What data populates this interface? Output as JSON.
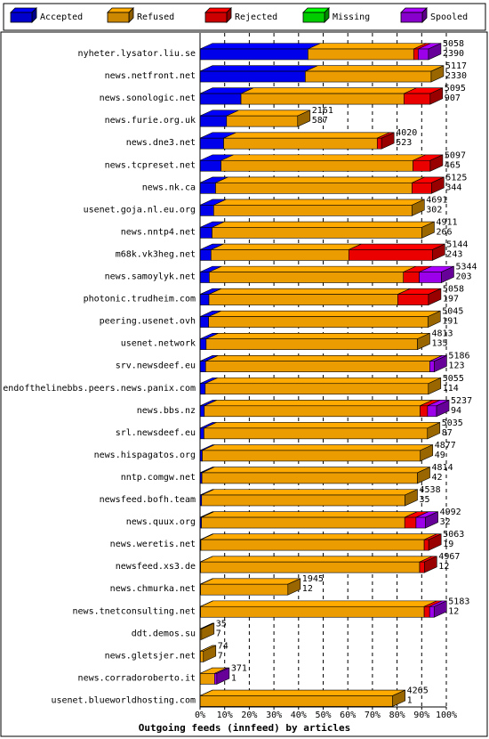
{
  "chart_data": {
    "type": "bar",
    "orientation": "horizontal",
    "stacked": true,
    "title": "Outgoing feeds (innfeed) by articles",
    "legend": {
      "placement": "top",
      "entries": [
        {
          "name": "Accepted",
          "color": "#0000ff"
        },
        {
          "name": "Refused",
          "color": "#ffaa00"
        },
        {
          "name": "Rejected",
          "color": "#ff0000"
        },
        {
          "name": "Missing",
          "color": "#00ff00"
        },
        {
          "name": "Spooled",
          "color": "#aa00ff"
        }
      ]
    },
    "xlim": [
      0,
      100
    ],
    "x_ticks": [
      "0%",
      "10%",
      "20%",
      "30%",
      "40%",
      "50%",
      "60%",
      "70%",
      "80%",
      "90%",
      "100%"
    ],
    "grid": true,
    "rows": [
      {
        "name": "nyheter.lysator.liu.se",
        "total": 5058,
        "accepted": 2390,
        "refused": 2340,
        "rejected": 100,
        "missing": 0,
        "spooled": 228
      },
      {
        "name": "news.netfront.net",
        "total": 5117,
        "accepted": 2330,
        "refused": 2787,
        "rejected": 0,
        "missing": 0,
        "spooled": 0
      },
      {
        "name": "news.sonologic.net",
        "total": 5095,
        "accepted": 907,
        "refused": 3608,
        "rejected": 580,
        "missing": 0,
        "spooled": 0
      },
      {
        "name": "news.furie.org.uk",
        "total": 2161,
        "accepted": 587,
        "refused": 1574,
        "rejected": 0,
        "missing": 0,
        "spooled": 0
      },
      {
        "name": "news.dne3.net",
        "total": 4020,
        "accepted": 523,
        "refused": 3400,
        "rejected": 97,
        "missing": 0,
        "spooled": 0
      },
      {
        "name": "news.tcpreset.net",
        "total": 5097,
        "accepted": 465,
        "refused": 4250,
        "rejected": 382,
        "missing": 0,
        "spooled": 0
      },
      {
        "name": "news.nk.ca",
        "total": 5125,
        "accepted": 344,
        "refused": 4350,
        "rejected": 431,
        "missing": 0,
        "spooled": 0
      },
      {
        "name": "usenet.goja.nl.eu.org",
        "total": 4691,
        "accepted": 302,
        "refused": 4389,
        "rejected": 0,
        "missing": 0,
        "spooled": 0
      },
      {
        "name": "news.nntp4.net",
        "total": 4911,
        "accepted": 266,
        "refused": 4645,
        "rejected": 0,
        "missing": 0,
        "spooled": 0
      },
      {
        "name": "m68k.vk3heg.net",
        "total": 5144,
        "accepted": 243,
        "refused": 3050,
        "rejected": 1851,
        "missing": 0,
        "spooled": 0
      },
      {
        "name": "news.samoylyk.net",
        "total": 5344,
        "accepted": 203,
        "refused": 4300,
        "rejected": 350,
        "missing": 0,
        "spooled": 491
      },
      {
        "name": "photonic.trudheim.com",
        "total": 5058,
        "accepted": 197,
        "refused": 4181,
        "rejected": 680,
        "missing": 0,
        "spooled": 0
      },
      {
        "name": "peering.usenet.ovh",
        "total": 5045,
        "accepted": 191,
        "refused": 4854,
        "rejected": 0,
        "missing": 0,
        "spooled": 0
      },
      {
        "name": "usenet.network",
        "total": 4813,
        "accepted": 135,
        "refused": 4678,
        "rejected": 0,
        "missing": 0,
        "spooled": 0
      },
      {
        "name": "srv.newsdeef.eu",
        "total": 5186,
        "accepted": 123,
        "refused": 4963,
        "rejected": 0,
        "missing": 0,
        "spooled": 100
      },
      {
        "name": "endofthelinebbs.peers.news.panix.com",
        "total": 5055,
        "accepted": 114,
        "refused": 4941,
        "rejected": 0,
        "missing": 0,
        "spooled": 0
      },
      {
        "name": "news.bbs.nz",
        "total": 5237,
        "accepted": 94,
        "refused": 4776,
        "rejected": 167,
        "missing": 0,
        "spooled": 200
      },
      {
        "name": "srl.newsdeef.eu",
        "total": 5035,
        "accepted": 87,
        "refused": 4948,
        "rejected": 0,
        "missing": 0,
        "spooled": 0
      },
      {
        "name": "news.hispagatos.org",
        "total": 4877,
        "accepted": 49,
        "refused": 4828,
        "rejected": 0,
        "missing": 0,
        "spooled": 0
      },
      {
        "name": "nntp.comgw.net",
        "total": 4814,
        "accepted": 42,
        "refused": 4772,
        "rejected": 0,
        "missing": 0,
        "spooled": 0
      },
      {
        "name": "newsfeed.bofh.team",
        "total": 4538,
        "accepted": 35,
        "refused": 4503,
        "rejected": 0,
        "missing": 0,
        "spooled": 0
      },
      {
        "name": "news.quux.org",
        "total": 4992,
        "accepted": 32,
        "refused": 4500,
        "rejected": 250,
        "missing": 0,
        "spooled": 210
      },
      {
        "name": "news.weretis.net",
        "total": 5063,
        "accepted": 19,
        "refused": 4944,
        "rejected": 100,
        "missing": 0,
        "spooled": 0
      },
      {
        "name": "newsfeed.xs3.de",
        "total": 4967,
        "accepted": 12,
        "refused": 4850,
        "rejected": 105,
        "missing": 0,
        "spooled": 0
      },
      {
        "name": "news.chmurka.net",
        "total": 1945,
        "accepted": 12,
        "refused": 1933,
        "rejected": 0,
        "missing": 0,
        "spooled": 0
      },
      {
        "name": "news.tnetconsulting.net",
        "total": 5183,
        "accepted": 12,
        "refused": 4951,
        "rejected": 120,
        "missing": 0,
        "spooled": 100
      },
      {
        "name": "ddt.demos.su",
        "total": 35,
        "accepted": 7,
        "refused": 28,
        "rejected": 0,
        "missing": 0,
        "spooled": 0
      },
      {
        "name": "news.gletsjer.net",
        "total": 74,
        "accepted": 7,
        "refused": 67,
        "rejected": 0,
        "missing": 0,
        "spooled": 0
      },
      {
        "name": "news.corradoroberto.it",
        "total": 371,
        "accepted": 1,
        "refused": 320,
        "rejected": 0,
        "missing": 0,
        "spooled": 50
      },
      {
        "name": "usenet.blueworldhosting.com",
        "total": 4265,
        "accepted": 1,
        "refused": 4264,
        "rejected": 0,
        "missing": 0,
        "spooled": 0
      }
    ]
  }
}
